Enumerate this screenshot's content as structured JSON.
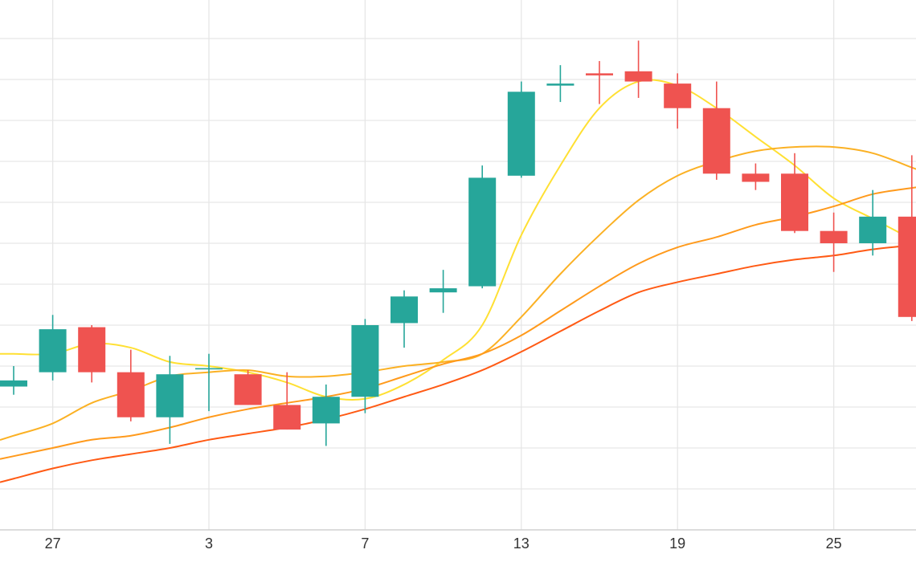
{
  "chart_data": {
    "type": "candlestick",
    "x_tick_labels": [
      "27",
      "3",
      "7",
      "13",
      "19",
      "25"
    ],
    "x_ticks_at_candle": [
      1,
      5,
      9,
      13,
      17,
      21
    ],
    "ylim": [
      0,
      12
    ],
    "grid": true,
    "colors": {
      "up": "#26a69a",
      "down": "#ef5350",
      "grid": "#e6e6e6",
      "background": "#ffffff"
    },
    "candles": [
      {
        "o": 3.5,
        "h": 4.0,
        "l": 3.3,
        "c": 3.65
      },
      {
        "o": 3.85,
        "h": 5.25,
        "l": 3.65,
        "c": 4.9
      },
      {
        "o": 4.95,
        "h": 5.0,
        "l": 3.6,
        "c": 3.85
      },
      {
        "o": 3.85,
        "h": 4.4,
        "l": 2.65,
        "c": 2.75
      },
      {
        "o": 2.75,
        "h": 4.25,
        "l": 2.1,
        "c": 3.8
      },
      {
        "o": 3.95,
        "h": 4.3,
        "l": 2.9,
        "c": 3.95
      },
      {
        "o": 3.8,
        "h": 3.9,
        "l": 3.05,
        "c": 3.05
      },
      {
        "o": 3.05,
        "h": 3.85,
        "l": 2.45,
        "c": 2.45
      },
      {
        "o": 2.6,
        "h": 3.55,
        "l": 2.05,
        "c": 3.25
      },
      {
        "o": 3.25,
        "h": 5.15,
        "l": 2.85,
        "c": 5.0
      },
      {
        "o": 5.05,
        "h": 5.85,
        "l": 4.45,
        "c": 5.7
      },
      {
        "o": 5.8,
        "h": 6.35,
        "l": 5.3,
        "c": 5.9
      },
      {
        "o": 5.95,
        "h": 8.9,
        "l": 5.9,
        "c": 8.6
      },
      {
        "o": 8.65,
        "h": 10.95,
        "l": 8.6,
        "c": 10.7
      },
      {
        "o": 10.85,
        "h": 11.35,
        "l": 10.45,
        "c": 10.9
      },
      {
        "o": 11.15,
        "h": 11.45,
        "l": 10.4,
        "c": 11.1
      },
      {
        "o": 11.2,
        "h": 11.95,
        "l": 10.55,
        "c": 10.95
      },
      {
        "o": 10.9,
        "h": 11.15,
        "l": 9.8,
        "c": 10.3
      },
      {
        "o": 10.3,
        "h": 10.95,
        "l": 8.55,
        "c": 8.7
      },
      {
        "o": 8.7,
        "h": 8.95,
        "l": 8.3,
        "c": 8.5
      },
      {
        "o": 8.7,
        "h": 9.2,
        "l": 7.25,
        "c": 7.3
      },
      {
        "o": 7.3,
        "h": 7.75,
        "l": 6.3,
        "c": 7.0
      },
      {
        "o": 7.0,
        "h": 8.3,
        "l": 6.7,
        "c": 7.65
      },
      {
        "o": 7.65,
        "h": 9.15,
        "l": 5.1,
        "c": 5.2
      }
    ],
    "moving_averages": [
      {
        "color": "#ffe033",
        "values": [
          4.3,
          4.3,
          4.55,
          4.45,
          4.1,
          4.0,
          3.85,
          3.6,
          3.25,
          3.2,
          3.55,
          4.15,
          5.0,
          7.2,
          8.9,
          10.3,
          10.95,
          10.85,
          10.3,
          9.6,
          8.9,
          8.1,
          7.6,
          7.1
        ]
      },
      {
        "color": "#fbb124",
        "values": [
          2.3,
          2.6,
          3.1,
          3.4,
          3.75,
          3.85,
          3.9,
          3.75,
          3.75,
          3.85,
          4.0,
          4.1,
          4.3,
          5.2,
          6.25,
          7.2,
          8.05,
          8.65,
          9.0,
          9.25,
          9.35,
          9.35,
          9.2,
          8.85
        ]
      },
      {
        "color": "#ff9a1c",
        "values": [
          1.8,
          2.0,
          2.2,
          2.3,
          2.5,
          2.75,
          2.95,
          3.1,
          3.25,
          3.45,
          3.75,
          4.05,
          4.3,
          4.75,
          5.35,
          5.95,
          6.5,
          6.9,
          7.15,
          7.45,
          7.65,
          7.9,
          8.2,
          8.35
        ]
      },
      {
        "color": "#ff5a14",
        "values": [
          1.25,
          1.5,
          1.7,
          1.85,
          2.0,
          2.2,
          2.35,
          2.5,
          2.7,
          2.95,
          3.25,
          3.55,
          3.9,
          4.35,
          4.85,
          5.35,
          5.8,
          6.05,
          6.25,
          6.45,
          6.6,
          6.7,
          6.85,
          6.95
        ]
      }
    ]
  }
}
